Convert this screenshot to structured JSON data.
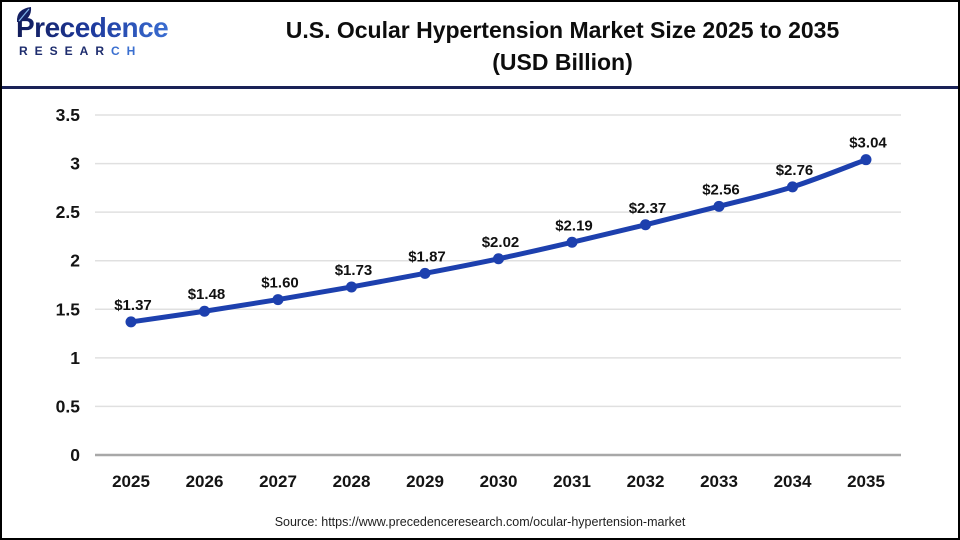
{
  "header": {
    "logo": {
      "brand": "Precedence",
      "sub_left": "RESEAR",
      "sub_right": "CH"
    },
    "title_line1": "U.S. Ocular Hypertension Market Size 2025 to 2035",
    "title_line2": "(USD Billion)"
  },
  "chart_data": {
    "type": "line",
    "title": "U.S. Ocular Hypertension Market Size 2025 to 2035 (USD Billion)",
    "categories": [
      "2025",
      "2026",
      "2027",
      "2028",
      "2029",
      "2030",
      "2031",
      "2032",
      "2033",
      "2034",
      "2035"
    ],
    "series": [
      {
        "name": "U.S. Ocular Hypertension Market Size (USD Billion)",
        "values": [
          1.37,
          1.48,
          1.6,
          1.73,
          1.87,
          2.02,
          2.19,
          2.37,
          2.56,
          2.76,
          3.04
        ],
        "data_labels": [
          "$1.37",
          "$1.48",
          "$1.60",
          "$1.73",
          "$1.87",
          "$2.02",
          "$2.19",
          "$2.37",
          "$2.56",
          "$2.76",
          "$3.04"
        ]
      }
    ],
    "xlabel": "",
    "ylabel": "",
    "ylim": [
      0,
      3.5
    ],
    "yticks": [
      {
        "value": 0,
        "label": "0"
      },
      {
        "value": 0.5,
        "label": "0.5"
      },
      {
        "value": 1,
        "label": "1"
      },
      {
        "value": 1.5,
        "label": "1.5"
      },
      {
        "value": 2,
        "label": "2"
      },
      {
        "value": 2.5,
        "label": "2.5"
      },
      {
        "value": 3,
        "label": "3"
      },
      {
        "value": 3.5,
        "label": "3.5"
      }
    ],
    "grid": "horizontal",
    "legend": "none",
    "marker": "circle"
  },
  "colors": {
    "line": "#1d40ae",
    "marker": "#1d40ae",
    "gridline": "#e0e0e0",
    "zero_axis": "#a8a8a8",
    "data_label": "#111111",
    "tick_label": "#141414",
    "brand_navy": "#1b2767",
    "brand_blue": "#3f76d8",
    "divider": "#1a2257"
  },
  "footer": {
    "source": "Source: https://www.precedenceresearch.com/ocular-hypertension-market"
  }
}
